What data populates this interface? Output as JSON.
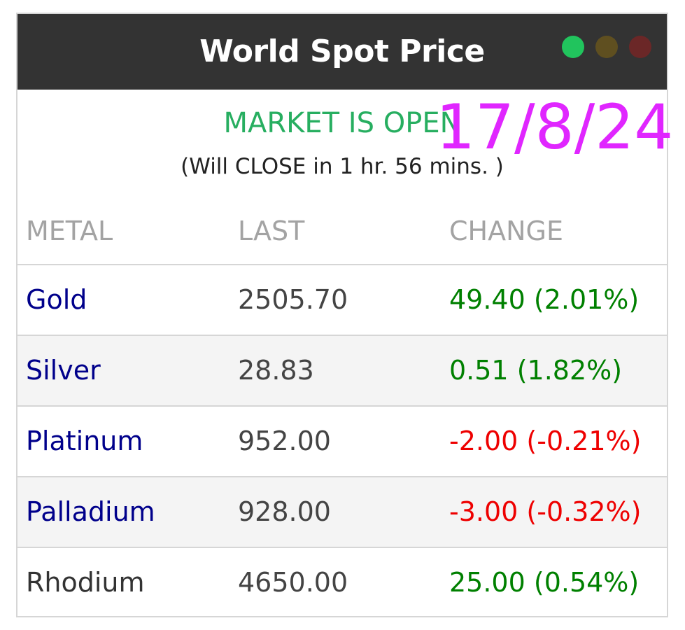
{
  "header": {
    "title": "World Spot Price",
    "indicators": [
      {
        "name": "green-dot",
        "color": "#21c45d"
      },
      {
        "name": "olive-dot",
        "color": "#5f4f20"
      },
      {
        "name": "maroon-dot",
        "color": "#6b2727"
      }
    ]
  },
  "status": {
    "text": "MARKET IS OPEN",
    "color": "#27ae60",
    "note": "(Will CLOSE in 1 hr. 56 mins. )"
  },
  "stamp": {
    "text": "17/8/24",
    "color": "#e026ff"
  },
  "table": {
    "columns": [
      "METAL",
      "LAST",
      "CHANGE"
    ],
    "rows": [
      {
        "metal": "Gold",
        "last": "2505.70",
        "change": "49.40 (2.01%)",
        "metal_color": "#00008b",
        "change_color": "#008000"
      },
      {
        "metal": "Silver",
        "last": "28.83",
        "change": "0.51 (1.82%)",
        "metal_color": "#00008b",
        "change_color": "#008000"
      },
      {
        "metal": "Platinum",
        "last": "952.00",
        "change": "-2.00 (-0.21%)",
        "metal_color": "#00008b",
        "change_color": "#ee0000"
      },
      {
        "metal": "Palladium",
        "last": "928.00",
        "change": "-3.00 (-0.32%)",
        "metal_color": "#00008b",
        "change_color": "#ee0000"
      },
      {
        "metal": "Rhodium",
        "last": "4650.00",
        "change": "25.00 (0.54%)",
        "metal_color": "#333333",
        "change_color": "#008000"
      }
    ]
  }
}
